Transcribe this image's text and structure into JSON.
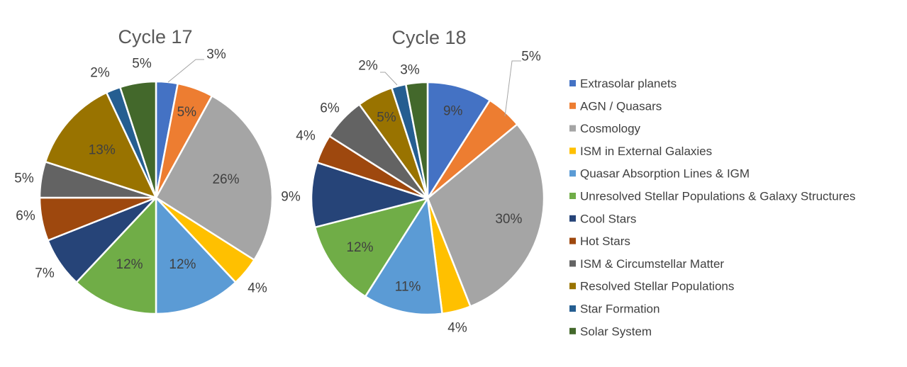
{
  "legend": [
    {
      "label": "Extrasolar planets",
      "color": "#4472C4"
    },
    {
      "label": "AGN / Quasars",
      "color": "#ED7D31"
    },
    {
      "label": "Cosmology",
      "color": "#A5A5A5"
    },
    {
      "label": "ISM in External Galaxies",
      "color": "#FFC000"
    },
    {
      "label": "Quasar Absorption Lines & IGM",
      "color": "#5B9BD5"
    },
    {
      "label": "Unresolved Stellar Populations & Galaxy Structures",
      "color": "#70AD47"
    },
    {
      "label": "Cool Stars",
      "color": "#264478"
    },
    {
      "label": "Hot Stars",
      "color": "#9E480E"
    },
    {
      "label": "ISM & Circumstellar Matter",
      "color": "#636363"
    },
    {
      "label": "Resolved Stellar Populations",
      "color": "#997300"
    },
    {
      "label": "Star Formation",
      "color": "#255E91"
    },
    {
      "label": "Solar System",
      "color": "#43682B"
    }
  ],
  "chart_data": [
    {
      "type": "pie",
      "title": "Cycle 17",
      "categories": [
        "Extrasolar planets",
        "AGN / Quasars",
        "Cosmology",
        "ISM in External Galaxies",
        "Quasar Absorption Lines & IGM",
        "Unresolved Stellar Populations & Galaxy Structures",
        "Cool Stars",
        "Hot Stars",
        "ISM & Circumstellar Matter",
        "Resolved Stellar Populations",
        "Star Formation",
        "Solar System"
      ],
      "values": [
        3,
        5,
        26,
        4,
        12,
        12,
        7,
        6,
        5,
        13,
        2,
        5
      ],
      "labels": [
        "3%",
        "5%",
        "26%",
        "4%",
        "12%",
        "12%",
        "7%",
        "6%",
        "5%",
        "13%",
        "2%",
        "5%"
      ]
    },
    {
      "type": "pie",
      "title": "Cycle 18",
      "categories": [
        "Extrasolar planets",
        "AGN / Quasars",
        "Cosmology",
        "ISM in External Galaxies",
        "Quasar Absorption Lines & IGM",
        "Unresolved Stellar Populations & Galaxy Structures",
        "Cool Stars",
        "Hot Stars",
        "ISM & Circumstellar Matter",
        "Resolved Stellar Populations",
        "Star Formation",
        "Solar System"
      ],
      "values": [
        9,
        5,
        30,
        4,
        11,
        12,
        9,
        4,
        6,
        5,
        2,
        3
      ],
      "labels": [
        "9%",
        "5%",
        "30%",
        "4%",
        "11%",
        "12%",
        "9%",
        "4%",
        "6%",
        "5%",
        "2%",
        "3%"
      ]
    }
  ]
}
